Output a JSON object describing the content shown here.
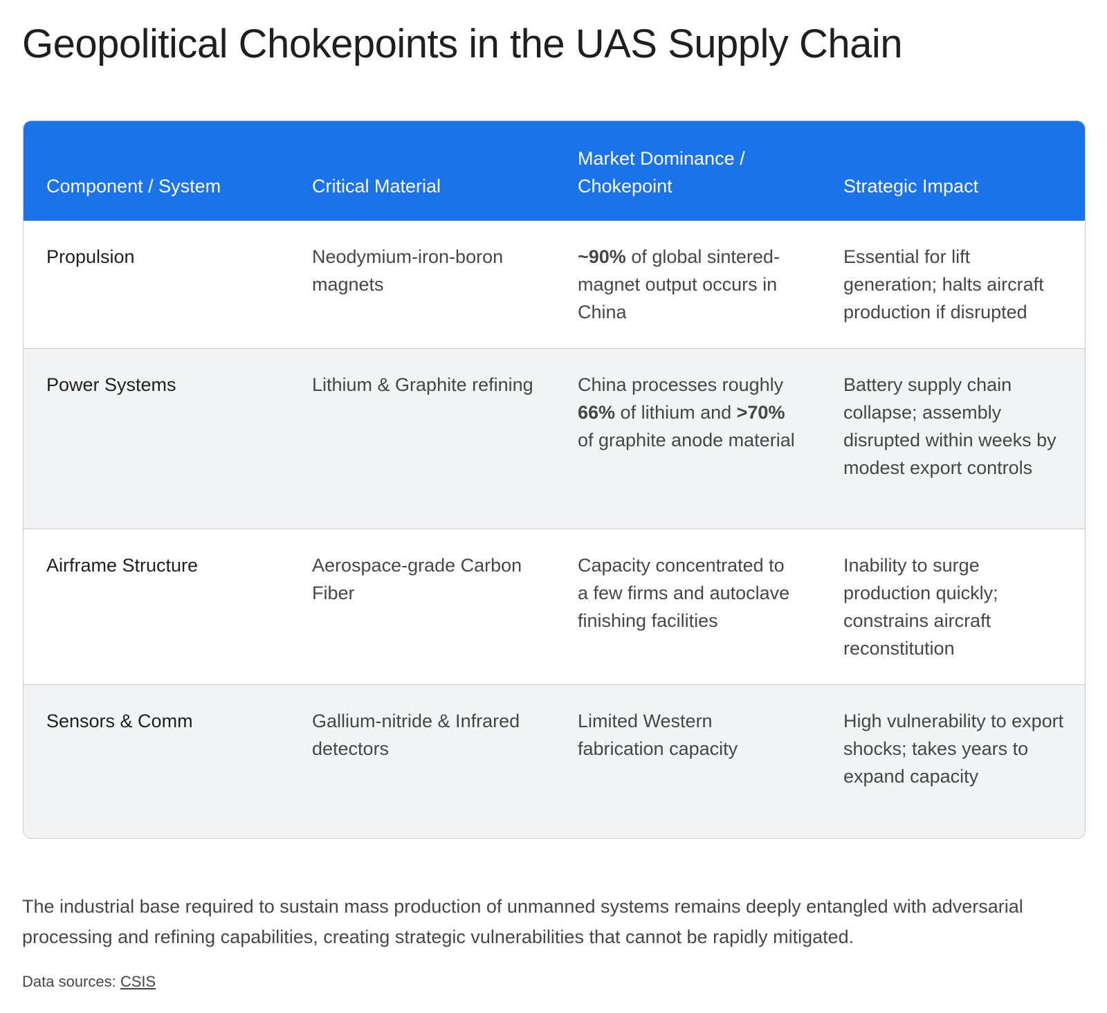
{
  "title": "Geopolitical Chokepoints in the UAS Supply Chain",
  "table": {
    "headers": [
      "Component / System",
      "Critical Material",
      "Market Dominance / Chokepoint",
      "Strategic Impact"
    ],
    "rows": [
      {
        "component": "Propulsion",
        "material": "Neodymium-iron-boron magnets",
        "dominance": {
          "p1": "~90%",
          "p2": " of global sintered-magnet output occurs in China"
        },
        "impact": "Essential for lift generation; halts aircraft production if disrupted"
      },
      {
        "component": "Power Systems",
        "material": "Lithium & Graphite refining",
        "dominance": {
          "p1": "China processes roughly ",
          "p2": "66%",
          "p3": " of lithium and ",
          "p4": ">70%",
          "p5": " of graphite anode material"
        },
        "impact": "Battery supply chain collapse; assembly disrupted within weeks by modest export controls"
      },
      {
        "component": "Airframe Structure",
        "material": "Aerospace-grade Carbon Fiber",
        "dominance": {
          "p1": "Capacity concentrated to a few firms and autoclave finishing facilities"
        },
        "impact": "Inability to surge production quickly; constrains aircraft reconstitution"
      },
      {
        "component": "Sensors & Comm",
        "material": "Gallium-nitride & Infrared detectors",
        "dominance": {
          "p1": "Limited Western fabrication capacity"
        },
        "impact": "High vulnerability to export shocks; takes years to expand capacity"
      }
    ]
  },
  "summary": "The industrial base required to sustain mass production of unmanned systems remains deeply entangled with adversarial processing and refining capabilities, creating strategic vulnerabilities that cannot be rapidly mitigated.",
  "sources": {
    "label": "Data sources: ",
    "link_text": "CSIS"
  },
  "colors": {
    "header_bg": "#1a73e8",
    "alt_row_bg": "#f1f3f4",
    "border": "#c8cacd"
  }
}
